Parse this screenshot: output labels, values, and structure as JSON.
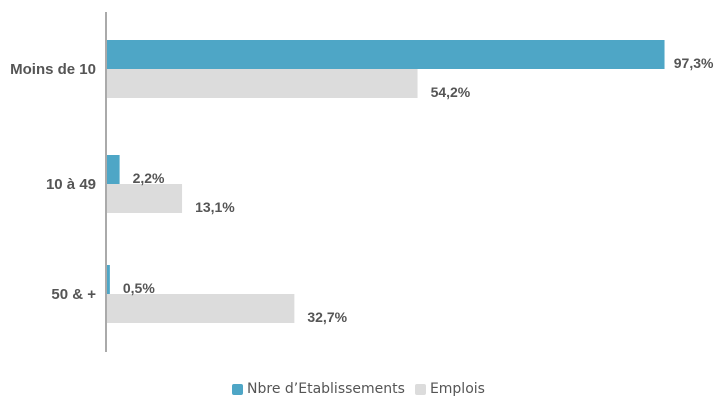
{
  "chart_data": {
    "type": "bar",
    "orientation": "horizontal",
    "categories": [
      "Moins de 10",
      "10 à 49",
      "50 & +"
    ],
    "series": [
      {
        "name": "Nbre d’Etablissements",
        "values": [
          97.3,
          2.2,
          0.5
        ],
        "labels": [
          "97,3%",
          "2,2%",
          "0,5%"
        ],
        "color": "#4ea6c6"
      },
      {
        "name": "Emplois",
        "values": [
          54.2,
          13.1,
          32.7
        ],
        "labels": [
          "54,2%",
          "13,1%",
          "32,7%"
        ],
        "color": "#dcdcdc"
      }
    ],
    "xlim": [
      0,
      100
    ],
    "grid": false,
    "legend_position": "bottom-center"
  }
}
